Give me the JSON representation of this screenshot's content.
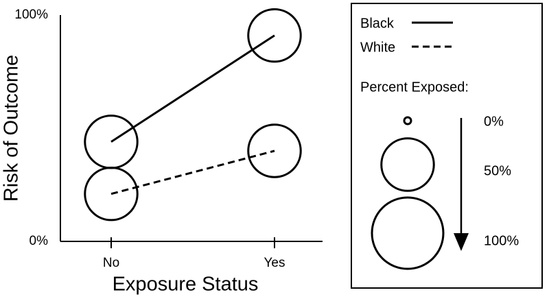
{
  "chart_data": {
    "type": "line",
    "x_label": "Exposure Status",
    "y_label": "Risk of Outcome",
    "categories": [
      "No",
      "Yes"
    ],
    "ylim": [
      0,
      100
    ],
    "yticks": [
      {
        "value": 0,
        "label": "0%"
      },
      {
        "value": 100,
        "label": "100%"
      }
    ],
    "series": [
      {
        "name": "Black",
        "color": "#000000",
        "line_style": "solid",
        "values": [
          44,
          91
        ],
        "size": [
          50,
          50
        ]
      },
      {
        "name": "White",
        "color": "#000000",
        "line_style": "dashed",
        "values": [
          21,
          40
        ],
        "size": [
          50,
          50
        ]
      }
    ],
    "size_legend": {
      "title": "Percent Exposed:",
      "entries": [
        {
          "value": 0,
          "label": "0%"
        },
        {
          "value": 50,
          "label": "50%"
        },
        {
          "value": 100,
          "label": "100%"
        }
      ]
    }
  }
}
